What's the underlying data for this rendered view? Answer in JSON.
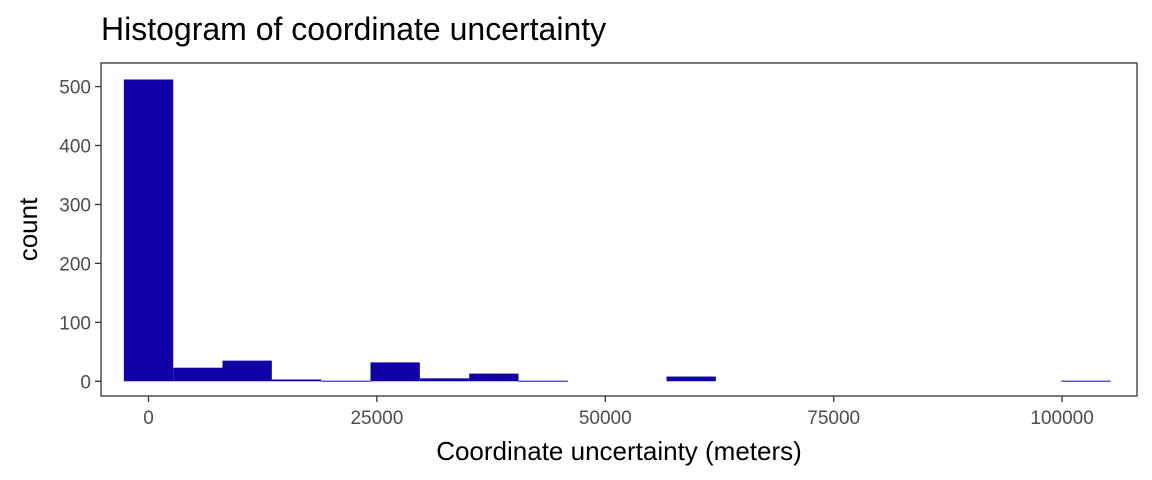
{
  "chart_data": {
    "type": "bar",
    "title": "Histogram of coordinate uncertainty",
    "xlabel": "Coordinate uncertainty (meters)",
    "ylabel": "count",
    "xlim": [
      -5200,
      108200
    ],
    "ylim": [
      -25,
      540
    ],
    "x_ticks": [
      0,
      25000,
      50000,
      75000,
      100000
    ],
    "x_tick_labels": [
      "0",
      "25000",
      "50000",
      "75000",
      "100000"
    ],
    "y_ticks": [
      0,
      100,
      200,
      300,
      400,
      500
    ],
    "y_tick_labels": [
      "0",
      "100",
      "200",
      "300",
      "400",
      "500"
    ],
    "grid": false,
    "bar_color": "#1100A8",
    "bins": [
      {
        "start": -2700,
        "end": 2700,
        "count": 512
      },
      {
        "start": 2700,
        "end": 8100,
        "count": 23
      },
      {
        "start": 8100,
        "end": 13500,
        "count": 35
      },
      {
        "start": 13500,
        "end": 18900,
        "count": 3
      },
      {
        "start": 18900,
        "end": 24300,
        "count": 1
      },
      {
        "start": 24300,
        "end": 29700,
        "count": 32
      },
      {
        "start": 29700,
        "end": 35100,
        "count": 5
      },
      {
        "start": 35100,
        "end": 40500,
        "count": 13
      },
      {
        "start": 40500,
        "end": 45900,
        "count": 1
      },
      {
        "start": 45900,
        "end": 51300,
        "count": 0
      },
      {
        "start": 51300,
        "end": 56700,
        "count": 0
      },
      {
        "start": 56700,
        "end": 62100,
        "count": 8
      },
      {
        "start": 62100,
        "end": 67500,
        "count": 0
      },
      {
        "start": 67500,
        "end": 72900,
        "count": 0
      },
      {
        "start": 72900,
        "end": 78300,
        "count": 0
      },
      {
        "start": 78300,
        "end": 83700,
        "count": 0
      },
      {
        "start": 83700,
        "end": 89100,
        "count": 0
      },
      {
        "start": 89100,
        "end": 94500,
        "count": 0
      },
      {
        "start": 94500,
        "end": 99900,
        "count": 0
      },
      {
        "start": 99900,
        "end": 105300,
        "count": 1
      }
    ]
  }
}
